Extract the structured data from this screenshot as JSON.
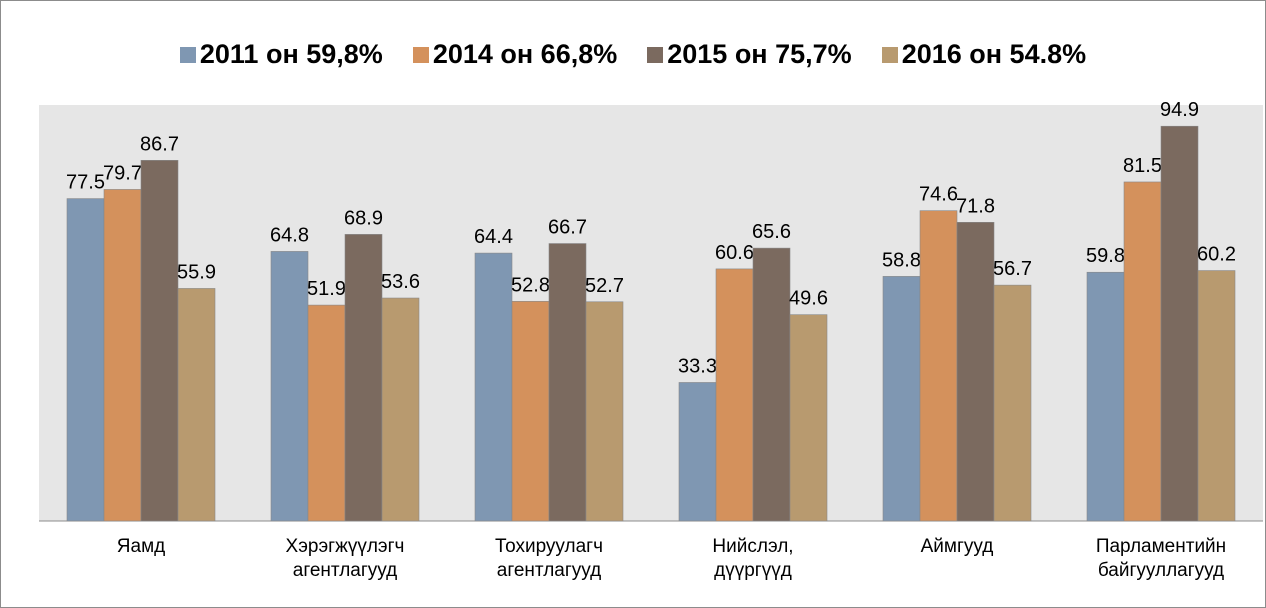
{
  "chart_data": {
    "type": "bar",
    "categories": [
      "Яамд",
      "Хэрэгжүүлэгч агентлагууд",
      "Тохируулагч агентлагууд",
      "Нийслэл, дүүргүүд",
      "Аймгууд",
      "Парламентийн байгууллагууд"
    ],
    "series": [
      {
        "name": "2011 он 59,8%",
        "color": "#7f97b2",
        "values": [
          77.5,
          64.8,
          64.4,
          33.3,
          58.8,
          59.8
        ]
      },
      {
        "name": "2014 он 66,8%",
        "color": "#d4915c",
        "values": [
          79.7,
          51.9,
          52.8,
          60.6,
          74.6,
          81.5
        ]
      },
      {
        "name": "2015 он 75,7%",
        "color": "#7b6a5f",
        "values": [
          86.7,
          68.9,
          66.7,
          65.6,
          71.8,
          94.9
        ]
      },
      {
        "name": "2016 он 54.8%",
        "color": "#b89a6f",
        "values": [
          55.9,
          53.6,
          52.7,
          49.6,
          56.7,
          60.2
        ]
      }
    ],
    "ylim": [
      0,
      100
    ]
  }
}
